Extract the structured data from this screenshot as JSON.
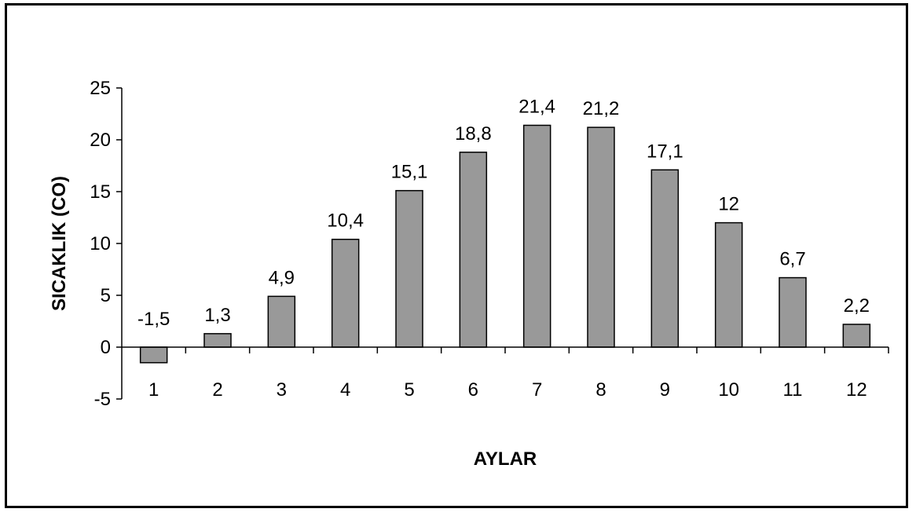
{
  "chart_data": {
    "type": "bar",
    "title": "",
    "xlabel": "AYLAR",
    "ylabel": "SICAKLIK (CO)",
    "categories": [
      "1",
      "2",
      "3",
      "4",
      "5",
      "6",
      "7",
      "8",
      "9",
      "10",
      "11",
      "12"
    ],
    "values": [
      -1.5,
      1.3,
      4.9,
      10.4,
      15.1,
      18.8,
      21.4,
      21.2,
      17.1,
      12,
      6.7,
      2.2
    ],
    "data_labels": [
      "-1,5",
      "1,3",
      "4,9",
      "10,4",
      "15,1",
      "18,8",
      "21,4",
      "21,2",
      "17,1",
      "12",
      "6,7",
      "2,2"
    ],
    "ylim": [
      -5,
      25
    ],
    "yticks": [
      "25",
      "20",
      "15",
      "10",
      "5",
      "0",
      "-5"
    ],
    "ytick_values": [
      25,
      20,
      15,
      10,
      5,
      0,
      -5
    ],
    "grid": false,
    "legend": "none",
    "colors": {
      "bar_fill": "#999999",
      "bar_stroke": "#000000",
      "axis": "#000000",
      "frame": "#000000"
    }
  }
}
